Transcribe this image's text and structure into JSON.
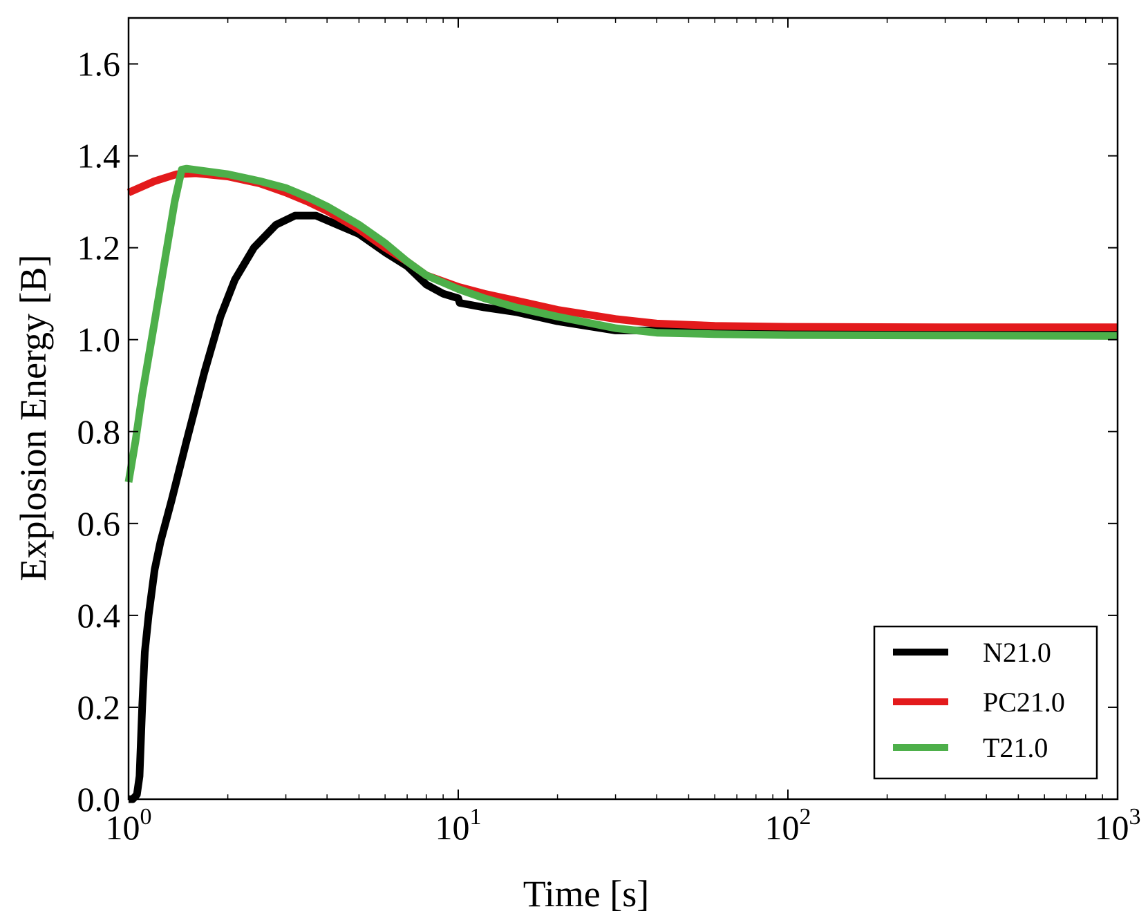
{
  "chart_data": {
    "type": "line",
    "title": "",
    "xlabel": "Time [s]",
    "ylabel": "Explosion Energy [B]",
    "xscale": "log",
    "xlim": [
      1,
      1000
    ],
    "ylim": [
      0.0,
      1.7
    ],
    "xticks": [
      {
        "value": 1,
        "base": "10",
        "exp": "0"
      },
      {
        "value": 10,
        "base": "10",
        "exp": "1"
      },
      {
        "value": 100,
        "base": "10",
        "exp": "2"
      },
      {
        "value": 1000,
        "base": "10",
        "exp": "3"
      }
    ],
    "yticks": [
      {
        "value": 0.0,
        "label": "0.0"
      },
      {
        "value": 0.2,
        "label": "0.2"
      },
      {
        "value": 0.4,
        "label": "0.4"
      },
      {
        "value": 0.6,
        "label": "0.6"
      },
      {
        "value": 0.8,
        "label": "0.8"
      },
      {
        "value": 1.0,
        "label": "1.0"
      },
      {
        "value": 1.2,
        "label": "1.2"
      },
      {
        "value": 1.4,
        "label": "1.4"
      },
      {
        "value": 1.6,
        "label": "1.6"
      }
    ],
    "grid": false,
    "legend_position": "lower-right",
    "series": [
      {
        "name": "N21.0",
        "color": "#000000",
        "points": [
          [
            1.0,
            0.0
          ],
          [
            1.03,
            0.0
          ],
          [
            1.06,
            0.01
          ],
          [
            1.08,
            0.05
          ],
          [
            1.1,
            0.2
          ],
          [
            1.12,
            0.32
          ],
          [
            1.15,
            0.4
          ],
          [
            1.2,
            0.5
          ],
          [
            1.25,
            0.56
          ],
          [
            1.35,
            0.65
          ],
          [
            1.5,
            0.78
          ],
          [
            1.7,
            0.93
          ],
          [
            1.9,
            1.05
          ],
          [
            2.1,
            1.13
          ],
          [
            2.4,
            1.2
          ],
          [
            2.8,
            1.25
          ],
          [
            3.2,
            1.27
          ],
          [
            3.7,
            1.27
          ],
          [
            4.3,
            1.25
          ],
          [
            5.0,
            1.23
          ],
          [
            6.0,
            1.19
          ],
          [
            7.0,
            1.16
          ],
          [
            8.0,
            1.12
          ],
          [
            9.0,
            1.1
          ],
          [
            10.0,
            1.09
          ],
          [
            10.1,
            1.08
          ],
          [
            12.0,
            1.07
          ],
          [
            15.0,
            1.06
          ],
          [
            20.0,
            1.04
          ],
          [
            30.0,
            1.02
          ],
          [
            50.0,
            1.02
          ],
          [
            100.0,
            1.02
          ],
          [
            300.0,
            1.02
          ],
          [
            1000.0,
            1.02
          ]
        ]
      },
      {
        "name": "PC21.0",
        "color": "#e31a1c",
        "points": [
          [
            1.0,
            1.32
          ],
          [
            1.2,
            1.345
          ],
          [
            1.4,
            1.36
          ],
          [
            1.6,
            1.362
          ],
          [
            2.0,
            1.355
          ],
          [
            2.5,
            1.34
          ],
          [
            3.0,
            1.32
          ],
          [
            3.5,
            1.3
          ],
          [
            4.0,
            1.28
          ],
          [
            5.0,
            1.24
          ],
          [
            6.0,
            1.2
          ],
          [
            7.0,
            1.17
          ],
          [
            8.0,
            1.14
          ],
          [
            10.0,
            1.115
          ],
          [
            12.0,
            1.1
          ],
          [
            15.0,
            1.085
          ],
          [
            20.0,
            1.065
          ],
          [
            30.0,
            1.045
          ],
          [
            40.0,
            1.035
          ],
          [
            60.0,
            1.03
          ],
          [
            100.0,
            1.028
          ],
          [
            300.0,
            1.027
          ],
          [
            1000.0,
            1.027
          ]
        ]
      },
      {
        "name": "T21.0",
        "color": "#4daf4a",
        "points": [
          [
            1.0,
            0.69
          ],
          [
            1.05,
            0.78
          ],
          [
            1.1,
            0.88
          ],
          [
            1.2,
            1.04
          ],
          [
            1.3,
            1.19
          ],
          [
            1.38,
            1.3
          ],
          [
            1.45,
            1.37
          ],
          [
            1.5,
            1.372
          ],
          [
            2.0,
            1.36
          ],
          [
            2.5,
            1.345
          ],
          [
            3.0,
            1.33
          ],
          [
            3.5,
            1.31
          ],
          [
            4.0,
            1.29
          ],
          [
            5.0,
            1.25
          ],
          [
            6.0,
            1.21
          ],
          [
            7.0,
            1.17
          ],
          [
            8.0,
            1.14
          ],
          [
            10.0,
            1.11
          ],
          [
            12.0,
            1.09
          ],
          [
            15.0,
            1.07
          ],
          [
            20.0,
            1.05
          ],
          [
            30.0,
            1.025
          ],
          [
            40.0,
            1.015
          ],
          [
            60.0,
            1.012
          ],
          [
            100.0,
            1.01
          ],
          [
            300.0,
            1.009
          ],
          [
            1000.0,
            1.008
          ]
        ]
      }
    ]
  }
}
